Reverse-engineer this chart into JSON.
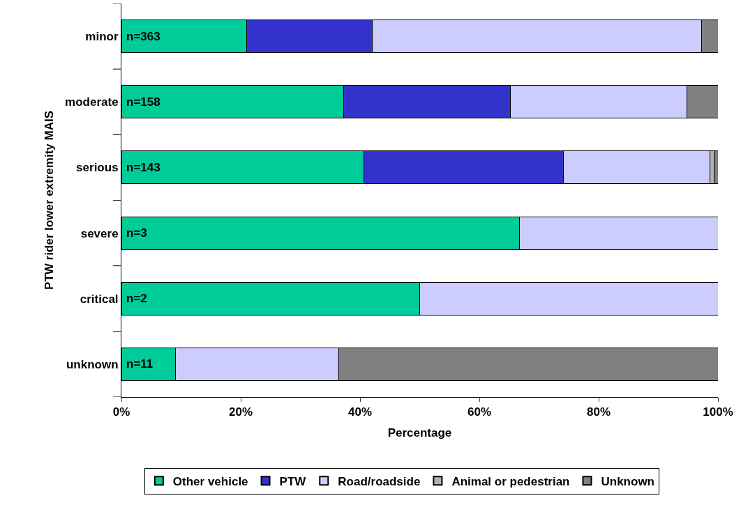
{
  "chart_data": {
    "type": "bar",
    "orientation": "horizontal",
    "stacked": true,
    "categories": [
      "minor",
      "moderate",
      "serious",
      "severe",
      "critical",
      "unknown"
    ],
    "xlabel": "Percentage",
    "ylabel": "PTW rider lower extremity MAIS",
    "xlim": [
      0,
      100
    ],
    "xticks": [
      {
        "value": 0,
        "label": "0%"
      },
      {
        "value": 20,
        "label": "20%"
      },
      {
        "value": 40,
        "label": "40%"
      },
      {
        "value": 60,
        "label": "60%"
      },
      {
        "value": 80,
        "label": "80%"
      },
      {
        "value": 100,
        "label": "100%"
      }
    ],
    "grid": false,
    "legend": "bottom",
    "series": [
      {
        "name": "Other vehicle",
        "color": "#00cc99",
        "values": [
          21.0,
          37.3,
          40.6,
          66.7,
          50.0,
          9.1
        ]
      },
      {
        "name": "PTW",
        "color": "#3333cc",
        "values": [
          21.1,
          27.9,
          33.5,
          null,
          null,
          null
        ]
      },
      {
        "name": "Road/roadside",
        "color": "#ccccff",
        "values": [
          55.1,
          29.6,
          24.5,
          33.3,
          50.0,
          27.3
        ]
      },
      {
        "name": "Animal or pedestrian",
        "color": "#b2b2b2",
        "values": [
          null,
          null,
          0.7,
          null,
          null,
          null
        ]
      },
      {
        "name": "Unknown",
        "color": "#808080",
        "values": [
          2.8,
          5.2,
          0.7,
          null,
          null,
          63.6
        ]
      }
    ],
    "annotations": [
      "n=363",
      "n=158",
      "n=143",
      "n=3",
      "n=2",
      "n=11"
    ]
  }
}
